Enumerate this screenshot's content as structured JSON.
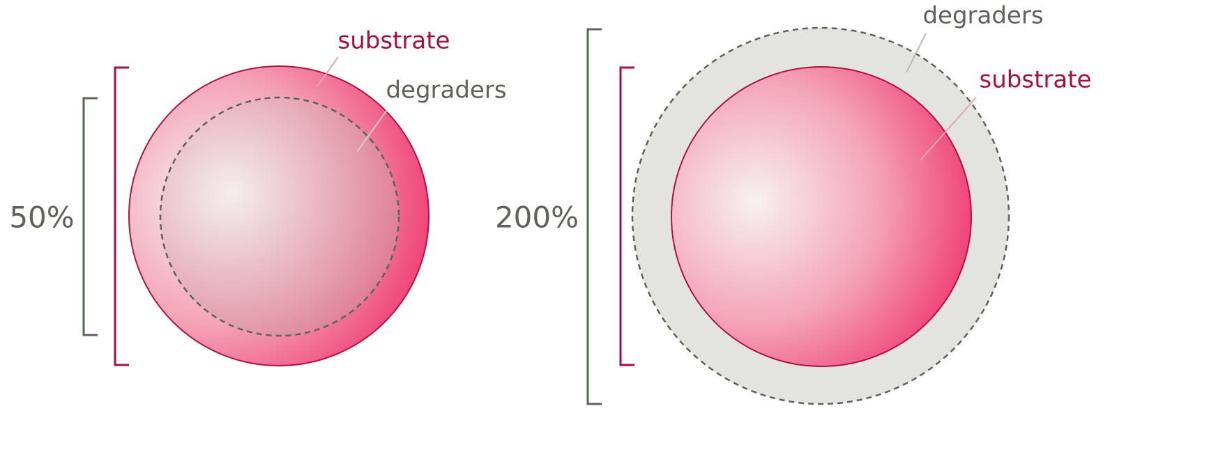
{
  "left": {
    "label": "50%",
    "substrate": "substrate",
    "degraders": "degraders"
  },
  "right": {
    "label": "200%",
    "substrate": "substrate",
    "degraders": "degraders"
  }
}
